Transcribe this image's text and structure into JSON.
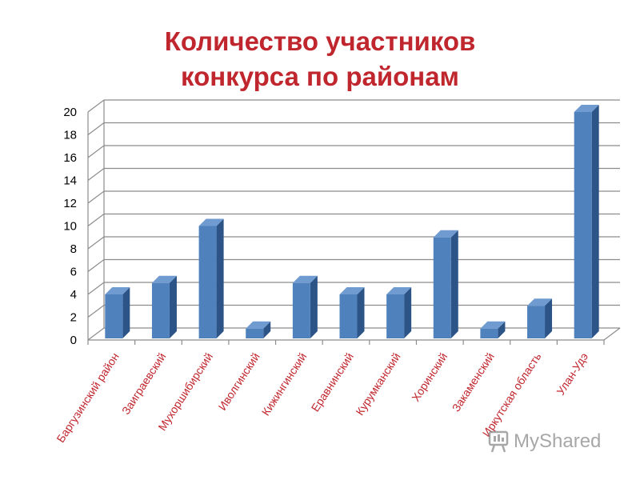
{
  "chart_data": {
    "type": "bar",
    "title": "Количество участников конкурса по районам",
    "title_lines": [
      "Количество участников",
      "конкурса по районам"
    ],
    "categories": [
      "Баргузинский район",
      "Заиграевский",
      "Мухоршибирский",
      "Иволгинский",
      "Кижингинский",
      "Еравнинский",
      "Курумканский",
      "Хоринский",
      "Закаменский",
      "Иркутская область",
      "Улан-Удэ"
    ],
    "values": [
      4,
      5,
      10,
      1,
      5,
      4,
      4,
      9,
      1,
      3,
      20
    ],
    "ylim": [
      0,
      20
    ],
    "yticks": [
      0,
      2,
      4,
      6,
      8,
      10,
      12,
      14,
      16,
      18,
      20
    ],
    "grid": true,
    "legend": "none",
    "colors": {
      "bar_front": "#4f81bd",
      "bar_side": "#2c5487",
      "bar_top": "#6f9bd1",
      "label": "#c0262d"
    }
  },
  "watermark": {
    "text": "MyShared",
    "icon": "myshared-logo-icon"
  }
}
